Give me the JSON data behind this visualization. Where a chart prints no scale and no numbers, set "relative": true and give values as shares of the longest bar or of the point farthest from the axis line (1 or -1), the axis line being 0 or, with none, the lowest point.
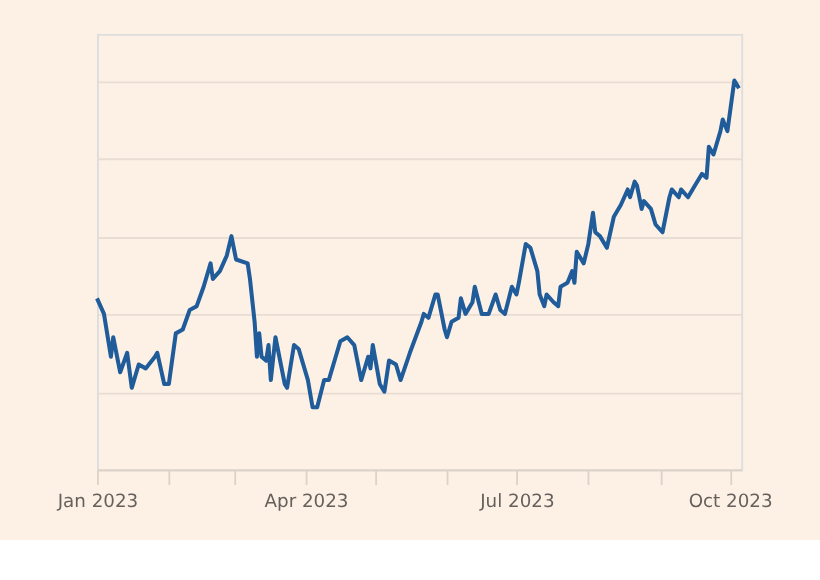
{
  "chart_data": {
    "type": "line",
    "relative": true,
    "grid": "y",
    "legend": false,
    "marker": "none",
    "line_style": "solid",
    "xlim": [
      "2023-01-01",
      "2023-10-06"
    ],
    "xticks": [
      {
        "value": "2023-01-01",
        "label": "Jan 2023"
      },
      {
        "value": "2023-02-01",
        "label": null
      },
      {
        "value": "2023-03-01",
        "label": null
      },
      {
        "value": "2023-04-01",
        "label": "Apr 2023"
      },
      {
        "value": "2023-05-01",
        "label": null
      },
      {
        "value": "2023-06-01",
        "label": null
      },
      {
        "value": "2023-07-01",
        "label": "Jul 2023"
      },
      {
        "value": "2023-08-01",
        "label": null
      },
      {
        "value": "2023-09-01",
        "label": null
      },
      {
        "value": "2023-10-01",
        "label": "Oct 2023"
      }
    ],
    "x": [
      "2023-01-01",
      "2023-01-04",
      "2023-01-07",
      "2023-01-08",
      "2023-01-11",
      "2023-01-14",
      "2023-01-16",
      "2023-01-19",
      "2023-01-22",
      "2023-01-26",
      "2023-01-27",
      "2023-01-30",
      "2023-02-01",
      "2023-02-04",
      "2023-02-07",
      "2023-02-10",
      "2023-02-13",
      "2023-02-16",
      "2023-02-19",
      "2023-02-20",
      "2023-02-23",
      "2023-02-26",
      "2023-02-28",
      "2023-03-02",
      "2023-03-07",
      "2023-03-08",
      "2023-03-10",
      "2023-03-11",
      "2023-03-12",
      "2023-03-13",
      "2023-03-15",
      "2023-03-16",
      "2023-03-17",
      "2023-03-19",
      "2023-03-23",
      "2023-03-24",
      "2023-03-27",
      "2023-03-29",
      "2023-04-02",
      "2023-04-04",
      "2023-04-06",
      "2023-04-09",
      "2023-04-11",
      "2023-04-14",
      "2023-04-16",
      "2023-04-19",
      "2023-04-22",
      "2023-04-25",
      "2023-04-28",
      "2023-04-29",
      "2023-04-30",
      "2023-05-03",
      "2023-05-05",
      "2023-05-07",
      "2023-05-10",
      "2023-05-12",
      "2023-05-16",
      "2023-05-21",
      "2023-05-22",
      "2023-05-24",
      "2023-05-27",
      "2023-05-28",
      "2023-05-31",
      "2023-06-01",
      "2023-06-03",
      "2023-06-06",
      "2023-06-07",
      "2023-06-09",
      "2023-06-12",
      "2023-06-13",
      "2023-06-16",
      "2023-06-19",
      "2023-06-22",
      "2023-06-24",
      "2023-06-26",
      "2023-06-29",
      "2023-07-01",
      "2023-07-02",
      "2023-07-05",
      "2023-07-07",
      "2023-07-10",
      "2023-07-11",
      "2023-07-13",
      "2023-07-14",
      "2023-07-17",
      "2023-07-19",
      "2023-07-20",
      "2023-07-23",
      "2023-07-25",
      "2023-07-26",
      "2023-07-27",
      "2023-07-30",
      "2023-08-01",
      "2023-08-03",
      "2023-08-04",
      "2023-08-06",
      "2023-08-09",
      "2023-08-12",
      "2023-08-15",
      "2023-08-18",
      "2023-08-19",
      "2023-08-21",
      "2023-08-22",
      "2023-08-24",
      "2023-08-25",
      "2023-08-28",
      "2023-08-30",
      "2023-09-02",
      "2023-09-05",
      "2023-09-06",
      "2023-09-09",
      "2023-09-10",
      "2023-09-13",
      "2023-09-16",
      "2023-09-19",
      "2023-09-21",
      "2023-09-22",
      "2023-09-24",
      "2023-09-27",
      "2023-09-28",
      "2023-09-30",
      "2023-10-03",
      "2023-10-05"
    ],
    "series": [
      {
        "color": "#1f5c99",
        "values": [
          0.44,
          0.4,
          0.29,
          0.34,
          0.25,
          0.3,
          0.21,
          0.27,
          0.26,
          0.29,
          0.3,
          0.22,
          0.22,
          0.35,
          0.36,
          0.41,
          0.42,
          0.47,
          0.53,
          0.49,
          0.51,
          0.55,
          0.6,
          0.54,
          0.53,
          0.49,
          0.38,
          0.29,
          0.35,
          0.29,
          0.28,
          0.32,
          0.23,
          0.34,
          0.22,
          0.21,
          0.32,
          0.31,
          0.23,
          0.16,
          0.16,
          0.23,
          0.23,
          0.29,
          0.33,
          0.34,
          0.32,
          0.23,
          0.29,
          0.26,
          0.32,
          0.22,
          0.2,
          0.28,
          0.27,
          0.23,
          0.3,
          0.38,
          0.4,
          0.39,
          0.45,
          0.45,
          0.36,
          0.34,
          0.38,
          0.39,
          0.44,
          0.4,
          0.43,
          0.47,
          0.4,
          0.4,
          0.45,
          0.41,
          0.4,
          0.47,
          0.45,
          0.48,
          0.58,
          0.57,
          0.51,
          0.45,
          0.42,
          0.45,
          0.43,
          0.42,
          0.47,
          0.48,
          0.51,
          0.48,
          0.56,
          0.53,
          0.58,
          0.66,
          0.61,
          0.6,
          0.57,
          0.65,
          0.68,
          0.72,
          0.7,
          0.74,
          0.73,
          0.67,
          0.69,
          0.67,
          0.63,
          0.61,
          0.7,
          0.72,
          0.7,
          0.72,
          0.7,
          0.73,
          0.76,
          0.75,
          0.83,
          0.81,
          0.87,
          0.9,
          0.87,
          1.0,
          0.98
        ]
      }
    ]
  }
}
